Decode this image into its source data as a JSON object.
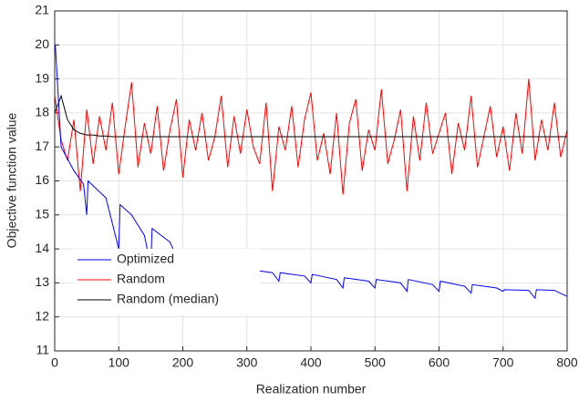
{
  "chart_data": {
    "type": "line",
    "x_label": "Realization number",
    "y_label": "Objective function value",
    "x": [
      0,
      10,
      20,
      30,
      40,
      50,
      60,
      70,
      80,
      90,
      100,
      110,
      120,
      130,
      140,
      150,
      160,
      170,
      180,
      190,
      200,
      210,
      220,
      230,
      240,
      250,
      260,
      270,
      280,
      290,
      300,
      310,
      320,
      330,
      340,
      350,
      360,
      370,
      380,
      390,
      400,
      410,
      420,
      430,
      440,
      450,
      460,
      470,
      480,
      490,
      500,
      510,
      520,
      530,
      540,
      550,
      560,
      570,
      580,
      590,
      600,
      610,
      620,
      630,
      640,
      650,
      660,
      670,
      680,
      690,
      700,
      710,
      720,
      730,
      740,
      750,
      760,
      770,
      780,
      790,
      800
    ],
    "series": [
      {
        "name": "Optimized",
        "color": "#0000ff",
        "x": [
          1,
          10,
          30,
          45,
          50,
          52,
          80,
          100,
          102,
          120,
          140,
          150,
          152,
          180,
          200,
          202,
          230,
          250,
          252,
          290,
          300,
          302,
          340,
          350,
          352,
          390,
          400,
          402,
          440,
          450,
          452,
          490,
          500,
          502,
          540,
          550,
          552,
          590,
          600,
          602,
          640,
          650,
          652,
          690,
          700,
          702,
          740,
          750,
          752,
          780,
          800
        ],
        "values": [
          20,
          17,
          16.3,
          15.9,
          15,
          16,
          15.5,
          14,
          15.3,
          15,
          14.4,
          13.5,
          14.6,
          14.2,
          13.35,
          13.95,
          13.6,
          13.2,
          13.6,
          13.45,
          13.15,
          13.4,
          13.3,
          13.05,
          13.3,
          13.2,
          13,
          13.25,
          13.1,
          12.85,
          13.15,
          13.05,
          12.85,
          13.1,
          13,
          12.75,
          13.1,
          12.95,
          12.75,
          13.05,
          12.9,
          12.7,
          12.95,
          12.85,
          12.75,
          12.8,
          12.78,
          12.55,
          12.8,
          12.78,
          12.6
        ]
      },
      {
        "name": "Random",
        "color": "#ff0000",
        "values": [
          18.5,
          17.2,
          16.6,
          17.8,
          15.7,
          18.1,
          16.5,
          17.9,
          16.9,
          18.3,
          16.2,
          17.6,
          18.9,
          16.4,
          17.7,
          16.8,
          18.2,
          16.3,
          17.5,
          18.4,
          16.1,
          17.8,
          16.9,
          18.0,
          16.6,
          17.3,
          18.5,
          16.4,
          17.9,
          16.8,
          18.1,
          17.0,
          16.5,
          18.3,
          15.7,
          17.6,
          16.9,
          18.2,
          16.4,
          17.8,
          18.6,
          16.6,
          17.4,
          16.2,
          18.0,
          15.6,
          17.7,
          18.4,
          16.3,
          17.5,
          16.9,
          18.7,
          16.5,
          17.2,
          18.1,
          15.7,
          17.9,
          16.6,
          18.3,
          16.8,
          17.4,
          18.0,
          16.2,
          17.7,
          16.9,
          18.5,
          16.4,
          17.3,
          18.2,
          16.7,
          17.6,
          16.3,
          18.0,
          16.8,
          19.0,
          16.6,
          17.8,
          16.9,
          18.3,
          16.7,
          17.5
        ]
      },
      {
        "name": "Random (median)",
        "color": "#000000",
        "values": [
          18.0,
          18.5,
          17.8,
          17.5,
          17.4,
          17.35,
          17.35,
          17.32,
          17.32,
          17.3,
          17.3,
          17.3,
          17.3,
          17.3,
          17.3,
          17.3,
          17.3,
          17.3,
          17.3,
          17.3,
          17.3,
          17.3,
          17.3,
          17.3,
          17.3,
          17.3,
          17.3,
          17.3,
          17.3,
          17.3,
          17.3,
          17.3,
          17.3,
          17.3,
          17.3,
          17.3,
          17.3,
          17.3,
          17.3,
          17.3,
          17.3,
          17.3,
          17.3,
          17.3,
          17.3,
          17.3,
          17.3,
          17.3,
          17.3,
          17.3,
          17.3,
          17.3,
          17.3,
          17.3,
          17.3,
          17.3,
          17.3,
          17.3,
          17.3,
          17.3,
          17.3,
          17.3,
          17.3,
          17.3,
          17.3,
          17.3,
          17.3,
          17.3,
          17.3,
          17.3,
          17.3,
          17.3,
          17.3,
          17.3,
          17.3,
          17.3,
          17.3,
          17.3,
          17.3,
          17.3,
          17.3
        ]
      }
    ],
    "xlim": [
      0,
      800
    ],
    "xticks": [
      0,
      100,
      200,
      300,
      400,
      500,
      600,
      700,
      800
    ],
    "ylim": [
      11,
      21
    ],
    "yticks": [
      11,
      12,
      13,
      14,
      15,
      16,
      17,
      18,
      19,
      20,
      21
    ],
    "grid": true,
    "legend": "lower-left"
  }
}
